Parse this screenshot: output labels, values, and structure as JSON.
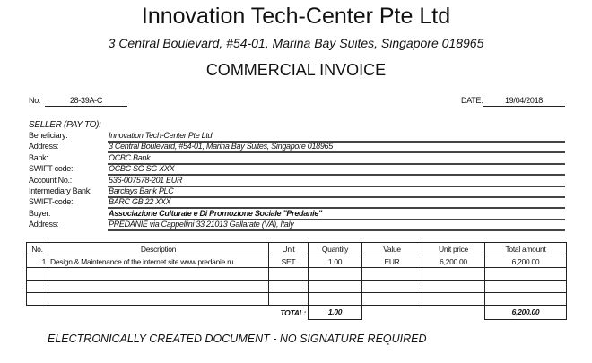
{
  "header": {
    "company": "Innovation Tech-Center Pte Ltd",
    "address": "3 Central Boulevard, #54-01, Marina Bay Suites, Singapore 018965",
    "doc_title": "COMMERCIAL INVOICE"
  },
  "meta": {
    "no_label": "No:",
    "no_value": "28-39A-C",
    "date_label": "DATE:",
    "date_value": "19/04/2018"
  },
  "seller_heading": "SELLER (PAY TO):",
  "fields": [
    {
      "label": "Beneficiary:",
      "value": "Innovation Tech-Center Pte Ltd"
    },
    {
      "label": "Address:",
      "value": "3 Central Boulevard, #54-01, Marina Bay Suites, Singapore 018965"
    },
    {
      "label": "Bank:",
      "value": "OCBC Bank"
    },
    {
      "label": "SWIFT-code:",
      "value": "OCBC SG SG XXX"
    },
    {
      "label": "Account No.:",
      "value": "536-007578-201 EUR"
    },
    {
      "label": "Intermediary Bank:",
      "value": "Barclays Bank PLC"
    },
    {
      "label": "SWIFT-code:",
      "value": "BARC GB 22 XXX"
    },
    {
      "label": "Buyer:",
      "value": "Associazione Culturale e Di Promozione Sociale \"Predanie\""
    },
    {
      "label": "Address:",
      "value": "PREDANIE via Cappellini 33 21013 Gallarate (VA), Italy"
    }
  ],
  "table": {
    "headers": [
      "No.",
      "Description",
      "Unit",
      "Quantity",
      "Value",
      "Unit price",
      "Total amount"
    ],
    "rows": [
      [
        "1",
        "Design & Maintenance of the internet site www.predanie.ru",
        "SET",
        "1.00",
        "EUR",
        "6,200.00",
        "6,200.00"
      ]
    ],
    "total_label": "TOTAL:",
    "total_quantity": "1.00",
    "total_amount": "6,200.00"
  },
  "footer": "ELECTRONICALLY CREATED DOCUMENT - NO SIGNATURE REQUIRED"
}
